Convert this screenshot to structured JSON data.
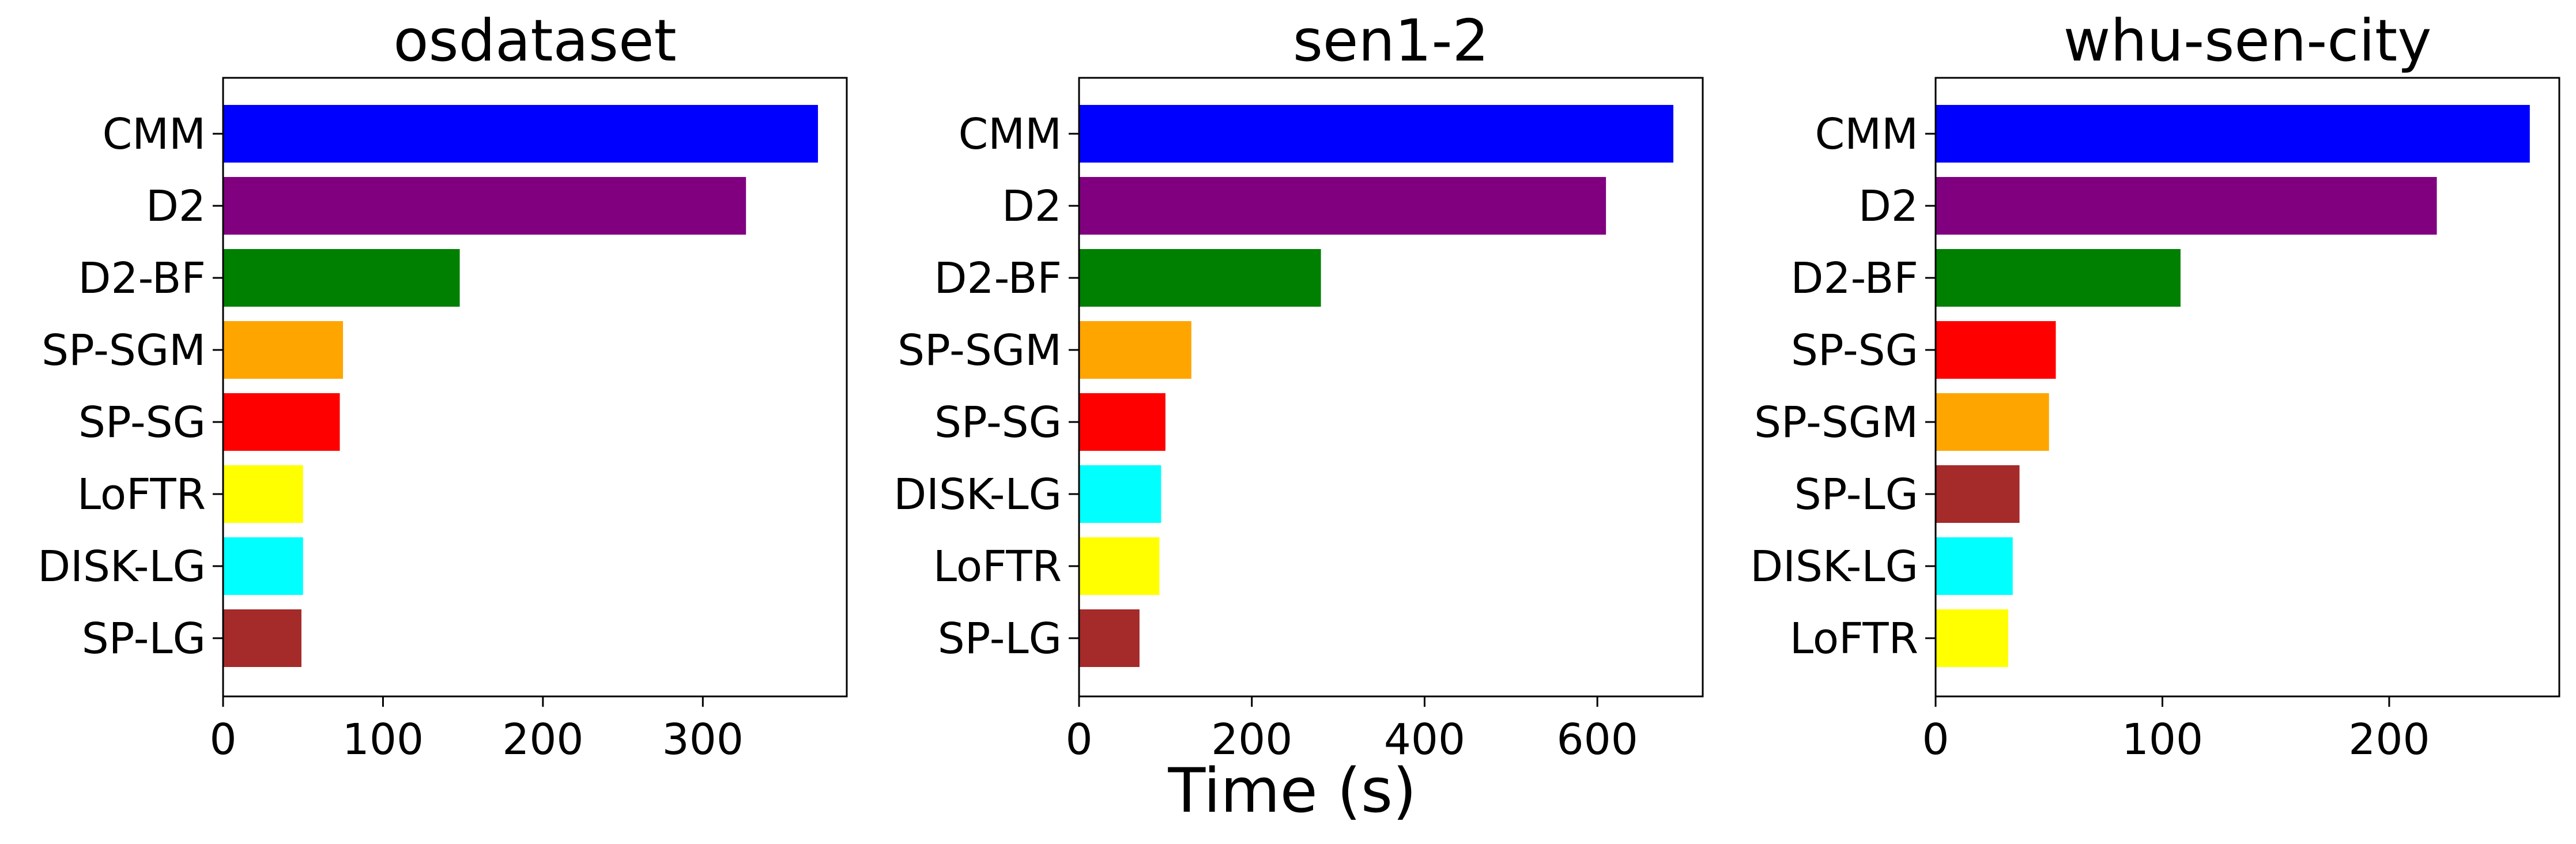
{
  "figure": {
    "xlabel": "Time (s)"
  },
  "colors": {
    "CMM": "#0000ff",
    "D2": "#800080",
    "D2-BF": "#008000",
    "SP-SGM": "#ffa500",
    "SP-SG": "#ff0000",
    "LoFTR": "#ffff00",
    "DISK-LG": "#00ffff",
    "SP-LG": "#a52a2a"
  },
  "chart_data": [
    {
      "type": "bar",
      "orientation": "horizontal",
      "title": "osdataset",
      "xlabel": "",
      "categories": [
        "CMM",
        "D2",
        "D2-BF",
        "SP-SGM",
        "SP-SG",
        "LoFTR",
        "DISK-LG",
        "SP-LG"
      ],
      "values": [
        372,
        327,
        148,
        75,
        73,
        50,
        50,
        49
      ],
      "xlim": [
        0,
        390
      ],
      "xticks": [
        0,
        100,
        200,
        300
      ],
      "grid": false
    },
    {
      "type": "bar",
      "orientation": "horizontal",
      "title": "sen1-2",
      "xlabel": "Time (s)",
      "categories": [
        "CMM",
        "D2",
        "D2-BF",
        "SP-SGM",
        "SP-SG",
        "DISK-LG",
        "LoFTR",
        "SP-LG"
      ],
      "values": [
        688,
        610,
        280,
        130,
        100,
        95,
        93,
        70
      ],
      "xlim": [
        0,
        722
      ],
      "xticks": [
        0,
        200,
        400,
        600
      ],
      "grid": false
    },
    {
      "type": "bar",
      "orientation": "horizontal",
      "title": "whu-sen-city",
      "xlabel": "",
      "categories": [
        "CMM",
        "D2",
        "D2-BF",
        "SP-SG",
        "SP-SGM",
        "SP-LG",
        "DISK-LG",
        "LoFTR"
      ],
      "values": [
        262,
        221,
        108,
        53,
        50,
        37,
        34,
        32
      ],
      "xlim": [
        0,
        275
      ],
      "xticks": [
        0,
        100,
        200
      ],
      "grid": false
    }
  ]
}
